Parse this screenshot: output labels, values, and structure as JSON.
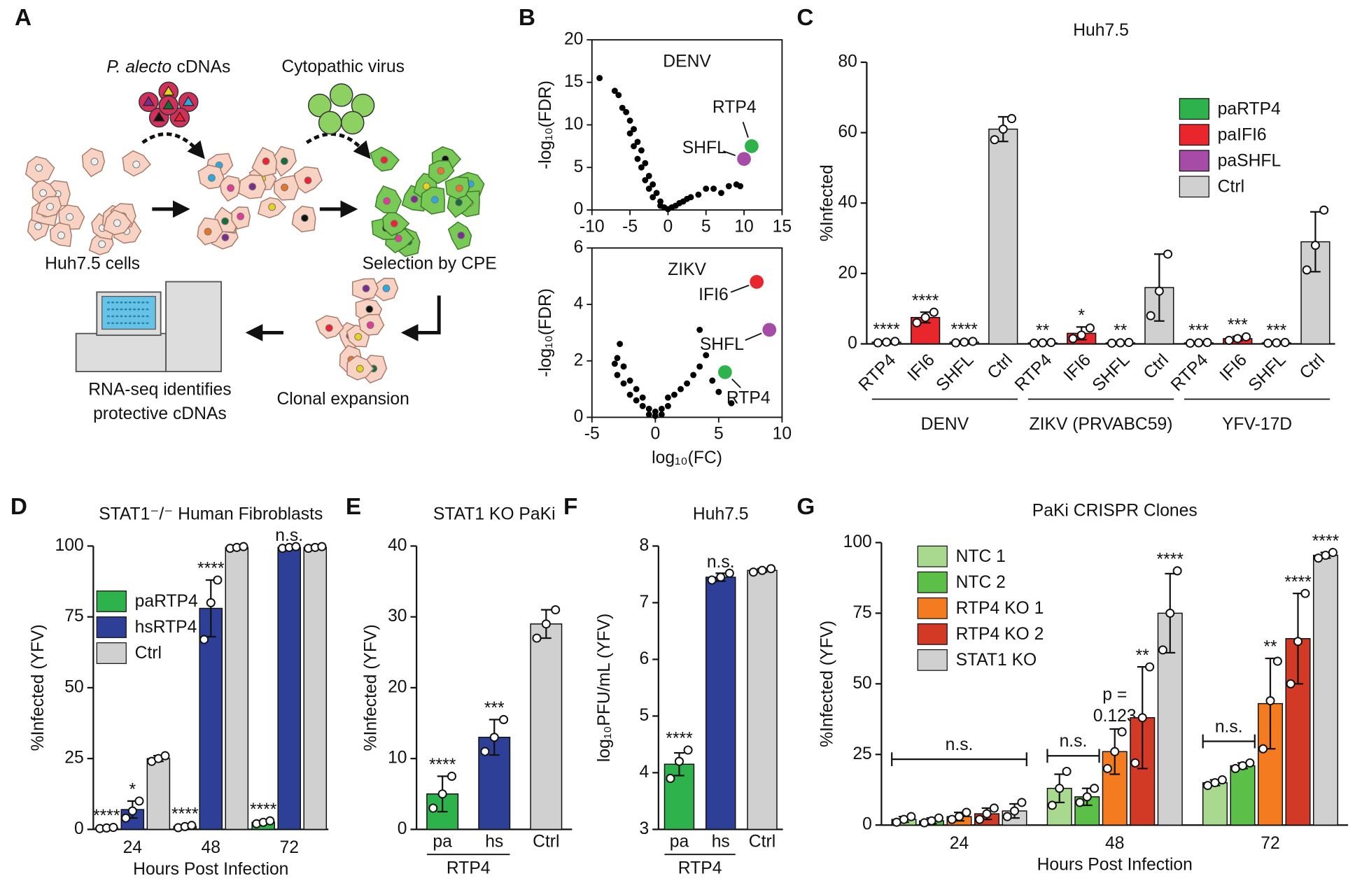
{
  "panel_labels": [
    "A",
    "B",
    "C",
    "D",
    "E",
    "F",
    "G"
  ],
  "diagram": {
    "cdna_species": "P. alecto",
    "cdna_suffix": "cDNAs",
    "virus": "Cytopathic virus",
    "cells": "Huh7.5 cells",
    "selection": "Selection by CPE",
    "expansion": "Clonal expansion",
    "rnaseq": [
      "RNA-seq identifies",
      "protective cDNAs"
    ]
  },
  "chart_data": [
    {
      "type": "scatter",
      "annotation": "DENV",
      "ylabel": "-log₁₀(FDR)",
      "xlim": [
        -10,
        15
      ],
      "xticks": [
        -10,
        -5,
        0,
        5,
        10,
        15
      ],
      "ylim": [
        0,
        20
      ],
      "yticks": [
        0,
        5,
        10,
        15,
        20
      ],
      "series": [
        {
          "color": "#000000",
          "x": [
            -9,
            -7,
            -6.5,
            -6,
            -5.5,
            -5,
            -5,
            -4.5,
            -4.5,
            -4,
            -4,
            -3.5,
            -3.5,
            -3,
            -3,
            -2.5,
            -2.5,
            -2,
            -2,
            -1.5,
            -1,
            -1,
            -0.5,
            0,
            0.5,
            1,
            1.5,
            2,
            2.5,
            3,
            4,
            5,
            6,
            7,
            8,
            9,
            9.5
          ],
          "y": [
            15.5,
            14,
            13.5,
            12,
            11.5,
            10.5,
            9,
            9.5,
            7.5,
            8,
            6,
            7,
            5,
            5.5,
            3.5,
            4,
            2.5,
            3,
            1.5,
            2,
            1,
            0.5,
            0.3,
            0.1,
            0.3,
            0.5,
            0.8,
            1,
            1.3,
            1.5,
            1.8,
            2.5,
            2.5,
            2,
            2.8,
            3,
            2.8
          ]
        },
        {
          "name": "RTP4",
          "color": "#2eb24b",
          "x": [
            11
          ],
          "y": [
            7.5
          ]
        },
        {
          "name": "SHFL",
          "color": "#a64ca6",
          "x": [
            10
          ],
          "y": [
            6
          ]
        }
      ]
    },
    {
      "type": "scatter",
      "annotation": "ZIKV",
      "ylabel": "-log₁₀(FDR)",
      "xlabel": "log₁₀(FC)",
      "xlim": [
        -5,
        10
      ],
      "xticks": [
        -5,
        0,
        5,
        10
      ],
      "ylim": [
        0,
        6
      ],
      "yticks": [
        0,
        2,
        4,
        6
      ],
      "series": [
        {
          "color": "#000000",
          "x": [
            -3,
            -3,
            -2.5,
            -2.5,
            -2,
            -2,
            -1.5,
            -1.5,
            -1,
            -1,
            -0.5,
            -0.5,
            0,
            0,
            0.5,
            0.5,
            1,
            1,
            1.5,
            2,
            2.5,
            3,
            3.5,
            4,
            4.5,
            5,
            6,
            3.5,
            -2.8,
            -3.2
          ],
          "y": [
            2.1,
            1.5,
            1.8,
            1.2,
            1.3,
            0.8,
            1,
            0.6,
            0.7,
            0.4,
            0.3,
            0.1,
            0.05,
            0.2,
            0.1,
            0.3,
            0.4,
            0.7,
            0.8,
            1,
            1.2,
            1.5,
            1.8,
            2.2,
            1.3,
            0.9,
            0.5,
            3.1,
            2.6,
            1.9
          ]
        },
        {
          "name": "IFI6",
          "color": "#e8262b",
          "x": [
            8
          ],
          "y": [
            4.8
          ]
        },
        {
          "name": "SHFL",
          "color": "#a64ca6",
          "x": [
            9
          ],
          "y": [
            3.1
          ]
        },
        {
          "name": "RTP4",
          "color": "#2eb24b",
          "x": [
            5.5
          ],
          "y": [
            1.6
          ]
        }
      ]
    },
    {
      "type": "bar",
      "title": "Huh7.5",
      "ylabel": "%Infected",
      "categories": [
        "DENV",
        "ZIKV (PRVABC59)",
        "YFV-17D"
      ],
      "bar_labels": [
        "RTP4",
        "IFI6",
        "SHFL",
        "Ctrl"
      ],
      "ylim": [
        0,
        80
      ],
      "yticks": [
        0,
        20,
        40,
        60,
        80
      ],
      "legend": "upper right",
      "series": [
        {
          "name": "paRTP4",
          "color": "#2eb24b",
          "values": [
            0.5,
            0.3,
            0.3
          ],
          "errors": [
            0.3,
            0.2,
            0.2
          ],
          "points": [
            [
              0.3,
              0.5,
              0.7
            ],
            [
              0.2,
              0.3,
              0.4
            ],
            [
              0.2,
              0.3,
              0.4
            ]
          ],
          "significance": [
            "****",
            "**",
            "***"
          ]
        },
        {
          "name": "paIFI6",
          "color": "#e8262b",
          "values": [
            7.5,
            3,
            1.5
          ],
          "errors": [
            1.5,
            1.8,
            0.6
          ],
          "points": [
            [
              6,
              7.5,
              9
            ],
            [
              1.5,
              2.5,
              4.5
            ],
            [
              1,
              1.5,
              2
            ]
          ],
          "significance": [
            "****",
            "*",
            "***"
          ]
        },
        {
          "name": "paSHFL",
          "color": "#a64ca6",
          "values": [
            0.5,
            0.3,
            0.3
          ],
          "errors": [
            0.3,
            0.2,
            0.2
          ],
          "points": [
            [
              0.3,
              0.5,
              0.7
            ],
            [
              0.2,
              0.3,
              0.4
            ],
            [
              0.2,
              0.3,
              0.4
            ]
          ],
          "significance": [
            "****",
            "**",
            "***"
          ]
        },
        {
          "name": "Ctrl",
          "color": "#d0d0d0",
          "values": [
            61,
            16,
            29
          ],
          "errors": [
            3.5,
            9.5,
            8.5
          ],
          "points": [
            [
              58,
              61,
              64
            ],
            [
              8,
              15,
              25.5
            ],
            [
              21,
              28,
              38
            ]
          ],
          "significance": [
            null,
            null,
            null
          ]
        }
      ]
    },
    {
      "type": "bar",
      "title": "STAT1⁻/⁻ Human Fibroblasts",
      "ylabel": "%Infected (YFV)",
      "xlabel": "Hours Post Infection",
      "categories": [
        "24",
        "48",
        "72"
      ],
      "ylim": [
        0,
        100
      ],
      "yticks": [
        0,
        25,
        50,
        75,
        100
      ],
      "legend": "center left",
      "series": [
        {
          "name": "paRTP4",
          "color": "#2eb24b",
          "values": [
            0.5,
            1,
            2.5
          ],
          "errors": [
            0.3,
            0.4,
            0.5
          ],
          "points": [
            [
              0.3,
              0.5,
              0.7
            ],
            [
              0.6,
              1,
              1.4
            ],
            [
              2,
              2.5,
              3
            ]
          ],
          "significance": [
            "****",
            "****",
            "****"
          ]
        },
        {
          "name": "hsRTP4",
          "color": "#2e3f98",
          "values": [
            7,
            78,
            99.5
          ],
          "errors": [
            3,
            10,
            0.3
          ],
          "points": [
            [
              4,
              6.5,
              10
            ],
            [
              67,
              80,
              88
            ],
            [
              99.2,
              99.5,
              99.8
            ]
          ],
          "significance": [
            "*",
            "****",
            "n.s."
          ]
        },
        {
          "name": "Ctrl",
          "color": "#d0d0d0",
          "values": [
            25,
            99.5,
            99.5
          ],
          "errors": [
            1,
            0.3,
            0.3
          ],
          "points": [
            [
              24,
              25,
              26
            ],
            [
              99.2,
              99.5,
              99.8
            ],
            [
              99.2,
              99.5,
              99.8
            ]
          ],
          "significance": [
            null,
            null,
            null
          ]
        }
      ]
    },
    {
      "type": "bar",
      "title": "STAT1 KO PaKi",
      "ylabel": "%Infected (YFV)",
      "categories": [
        "pa",
        "hs",
        "Ctrl"
      ],
      "group_label": "RTP4",
      "colors": [
        "#2eb24b",
        "#2e3f98",
        "#d0d0d0"
      ],
      "values": [
        5,
        13,
        29
      ],
      "errors": [
        2.5,
        2.5,
        2
      ],
      "points": [
        [
          3,
          5,
          7.5
        ],
        [
          11,
          13,
          15.5
        ],
        [
          27,
          29,
          31
        ]
      ],
      "significance": [
        "****",
        "***",
        null
      ],
      "ylim": [
        0,
        40
      ],
      "yticks": [
        0,
        10,
        20,
        30,
        40
      ]
    },
    {
      "type": "bar",
      "title": "Huh7.5",
      "ylabel": "log₁₀PFU/mL (YFV)",
      "categories": [
        "pa",
        "hs",
        "Ctrl"
      ],
      "group_label": "RTP4",
      "colors": [
        "#2eb24b",
        "#2e3f98",
        "#d0d0d0"
      ],
      "values": [
        4.15,
        7.45,
        7.57
      ],
      "errors": [
        0.2,
        0.07,
        0.03
      ],
      "points": [
        [
          3.9,
          4.2,
          4.4
        ],
        [
          7.4,
          7.45,
          7.52
        ],
        [
          7.54,
          7.57,
          7.6
        ]
      ],
      "significance": [
        "****",
        "n.s.",
        null
      ],
      "ylim": [
        3,
        8
      ],
      "yticks": [
        3,
        4,
        5,
        6,
        7,
        8
      ]
    },
    {
      "type": "bar",
      "title": "PaKi CRISPR Clones",
      "ylabel": "%Infected (YFV)",
      "xlabel": "Hours Post Infection",
      "categories": [
        "24",
        "48",
        "72"
      ],
      "ylim": [
        0,
        100
      ],
      "yticks": [
        0,
        25,
        50,
        75,
        100
      ],
      "legend": "upper left",
      "brackets": [
        "n.s.",
        "n.s.",
        "n.s."
      ],
      "series": [
        {
          "name": "NTC 1",
          "color": "#a8d98e",
          "values": [
            2,
            13,
            15
          ],
          "errors": [
            1,
            5,
            1
          ],
          "points": [
            [
              1,
              2,
              3
            ],
            [
              7,
              13,
              19
            ],
            [
              14,
              15,
              16
            ]
          ],
          "significance": [
            null,
            null,
            null
          ]
        },
        {
          "name": "NTC 2",
          "color": "#5cbf47",
          "values": [
            1.5,
            10,
            21
          ],
          "errors": [
            1,
            3,
            1
          ],
          "points": [
            [
              0.8,
              1.5,
              2.5
            ],
            [
              8,
              10,
              13
            ],
            [
              20,
              21,
              22
            ]
          ],
          "significance": [
            null,
            null,
            null
          ]
        },
        {
          "name": "RTP4 KO 1",
          "color": "#f47b20",
          "values": [
            3,
            26,
            43
          ],
          "errors": [
            1.5,
            8,
            16
          ],
          "points": [
            [
              2,
              3,
              4.5
            ],
            [
              20,
              26,
              33
            ],
            [
              27,
              44,
              58
            ]
          ],
          "significance": [
            null,
            [
              "p =",
              "0.123"
            ],
            "**"
          ]
        },
        {
          "name": "RTP4 KO 2",
          "color": "#d23a26",
          "values": [
            4,
            38,
            66
          ],
          "errors": [
            2,
            18,
            16
          ],
          "points": [
            [
              2,
              4,
              6
            ],
            [
              22,
              38,
              56
            ],
            [
              50,
              65,
              82
            ]
          ],
          "significance": [
            null,
            "**",
            "****"
          ]
        },
        {
          "name": "STAT1 KO",
          "color": "#d0d0d0",
          "values": [
            5,
            75,
            95.5
          ],
          "errors": [
            2.5,
            14,
            1
          ],
          "points": [
            [
              3,
              5,
              8
            ],
            [
              62,
              75,
              90
            ],
            [
              94.5,
              95.5,
              96.5
            ]
          ],
          "significance": [
            null,
            "****",
            "****"
          ]
        }
      ]
    }
  ]
}
